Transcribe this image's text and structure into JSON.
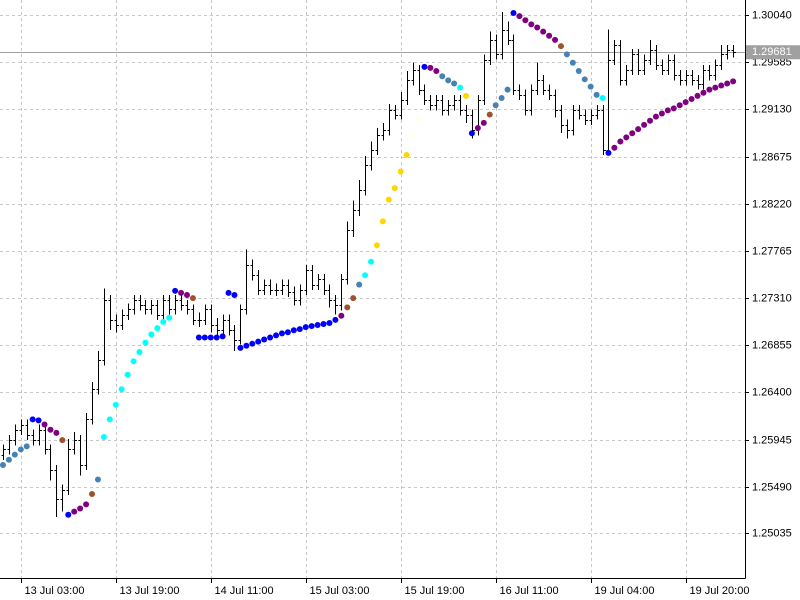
{
  "chart_data": {
    "type": "ohlc",
    "color": "#000000",
    "x": [
      0,
      1,
      2,
      3,
      4,
      5,
      6,
      7,
      8,
      9,
      10,
      11,
      12,
      13,
      14,
      15,
      16,
      17,
      18,
      19,
      20,
      21,
      22,
      23,
      24,
      25,
      26,
      27,
      28,
      29,
      30,
      31,
      32,
      33,
      34,
      35,
      36,
      37,
      38,
      39,
      40,
      41,
      42,
      43,
      44,
      45,
      46,
      47,
      48,
      49,
      50,
      51,
      52,
      53,
      54,
      55,
      56,
      57,
      58,
      59,
      60,
      61,
      62,
      63,
      64,
      65,
      66,
      67,
      68,
      69,
      70,
      71,
      72,
      73,
      74,
      75,
      76,
      77,
      78,
      79,
      80,
      81,
      82,
      83,
      84,
      85,
      86,
      87,
      88,
      89,
      90,
      91,
      92,
      93,
      94,
      95,
      96,
      97,
      98,
      99,
      100,
      101,
      102,
      103,
      104,
      105,
      106,
      107,
      108,
      109,
      110,
      111,
      112,
      113,
      114,
      115,
      116,
      117,
      118,
      119,
      120,
      121,
      122,
      123
    ],
    "open": [
      1.258,
      1.2585,
      1.2594,
      1.2604,
      1.2609,
      1.2599,
      1.2594,
      1.2604,
      1.2585,
      1.2565,
      1.2537,
      1.2546,
      1.2585,
      1.2594,
      1.257,
      1.2614,
      1.2643,
      1.2671,
      1.2729,
      1.271,
      1.2705,
      1.2715,
      1.272,
      1.2729,
      1.2724,
      1.272,
      1.2724,
      1.2715,
      1.2729,
      1.272,
      1.2729,
      1.2724,
      1.272,
      1.271,
      1.271,
      1.272,
      1.2705,
      1.27,
      1.271,
      1.27,
      1.2691,
      1.272,
      1.2763,
      1.2753,
      1.2739,
      1.2744,
      1.2739,
      1.2739,
      1.2744,
      1.2737,
      1.2729,
      1.2739,
      1.2758,
      1.2744,
      1.2749,
      1.2739,
      1.2729,
      1.2724,
      1.2749,
      1.2797,
      1.2816,
      1.2835,
      1.2859,
      1.2874,
      1.2888,
      1.2893,
      1.2912,
      1.2908,
      1.2922,
      1.2941,
      1.2951,
      1.2932,
      1.2922,
      1.2917,
      1.2922,
      1.2912,
      1.2917,
      1.2922,
      1.2912,
      1.2908,
      1.2893,
      1.2922,
      1.2961,
      1.298,
      1.2966,
      1.299,
      1.298,
      1.2932,
      1.2927,
      1.2912,
      1.2932,
      1.2941,
      1.2932,
      1.2927,
      1.2912,
      1.2898,
      1.2893,
      1.2912,
      1.2908,
      1.2903,
      1.2908,
      1.2912,
      1.2874,
      1.2961,
      1.2975,
      1.2941,
      1.2951,
      1.2966,
      1.2951,
      1.2961,
      1.297,
      1.2956,
      1.2951,
      1.2961,
      1.2946,
      1.2941,
      1.2946,
      1.2941,
      1.2937,
      1.2951,
      1.2946,
      1.2956,
      1.2966,
      1.297
    ],
    "high": [
      1.259,
      1.2599,
      1.2609,
      1.2614,
      1.2614,
      1.2604,
      1.2609,
      1.2609,
      1.259,
      1.257,
      1.2551,
      1.2595,
      1.2602,
      1.2599,
      1.262,
      1.265,
      1.268,
      1.274,
      1.2734,
      1.2715,
      1.272,
      1.2726,
      1.2734,
      1.2734,
      1.2729,
      1.2729,
      1.2729,
      1.2734,
      1.2734,
      1.2734,
      1.2734,
      1.2729,
      1.2725,
      1.2717,
      1.2725,
      1.2725,
      1.2712,
      1.2715,
      1.2715,
      1.2705,
      1.2725,
      1.2778,
      1.2768,
      1.2758,
      1.2749,
      1.2749,
      1.2745,
      1.2749,
      1.2749,
      1.2742,
      1.2744,
      1.2763,
      1.2763,
      1.2754,
      1.2754,
      1.2744,
      1.2734,
      1.2754,
      1.2805,
      1.2825,
      1.2845,
      1.2868,
      1.2882,
      1.2895,
      1.29,
      1.2918,
      1.2917,
      1.293,
      1.295,
      1.2958,
      1.2956,
      1.2937,
      1.2927,
      1.2927,
      1.2927,
      1.2922,
      1.2927,
      1.2927,
      1.2917,
      1.2913,
      1.2927,
      1.2966,
      1.2988,
      1.2985,
      1.3007,
      1.2998,
      1.2985,
      1.2937,
      1.2932,
      1.2937,
      1.2958,
      1.2946,
      1.2937,
      1.2932,
      1.2917,
      1.2903,
      1.2917,
      1.2917,
      1.2913,
      1.2913,
      1.2917,
      1.2917,
      1.299,
      1.298,
      1.298,
      1.2956,
      1.2971,
      1.2971,
      1.2966,
      1.298,
      1.2975,
      1.2961,
      1.2966,
      1.2966,
      1.2951,
      1.2951,
      1.2951,
      1.2946,
      1.2956,
      1.2956,
      1.2961,
      1.2975,
      1.2975,
      1.2975
    ],
    "low": [
      1.2575,
      1.258,
      1.2589,
      1.2599,
      1.2594,
      1.2589,
      1.2589,
      1.258,
      1.2555,
      1.252,
      1.2525,
      1.2541,
      1.258,
      1.256,
      1.2565,
      1.2609,
      1.2638,
      1.2666,
      1.27,
      1.2698,
      1.27,
      1.271,
      1.2715,
      1.2719,
      1.2715,
      1.2715,
      1.271,
      1.271,
      1.2715,
      1.2715,
      1.2719,
      1.2715,
      1.2705,
      1.2703,
      1.2705,
      1.2698,
      1.2693,
      1.2695,
      1.2695,
      1.268,
      1.2686,
      1.2715,
      1.2748,
      1.2734,
      1.2734,
      1.2734,
      1.2733,
      1.2734,
      1.2732,
      1.2724,
      1.2724,
      1.2734,
      1.2739,
      1.2739,
      1.2734,
      1.2722,
      1.2715,
      1.2719,
      1.2744,
      1.279,
      1.281,
      1.283,
      1.2854,
      1.2869,
      1.2883,
      1.2888,
      1.2903,
      1.2903,
      1.2917,
      1.2936,
      1.2927,
      1.2917,
      1.2912,
      1.2912,
      1.2907,
      1.2907,
      1.2912,
      1.2907,
      1.29,
      1.2885,
      1.2888,
      1.2917,
      1.2956,
      1.2961,
      1.2961,
      1.2975,
      1.2927,
      1.2922,
      1.2907,
      1.2907,
      1.2927,
      1.2927,
      1.2922,
      1.2905,
      1.289,
      1.2885,
      1.2888,
      1.2903,
      1.2898,
      1.2898,
      1.2903,
      1.2869,
      1.2869,
      1.2956,
      1.2936,
      1.2936,
      1.2946,
      1.2946,
      1.2946,
      1.2956,
      1.2951,
      1.2946,
      1.2946,
      1.2941,
      1.2936,
      1.2936,
      1.2936,
      1.2932,
      1.2932,
      1.2941,
      1.2941,
      1.2951,
      1.2961,
      1.2963
    ],
    "close": [
      1.2585,
      1.2594,
      1.2604,
      1.2609,
      1.2599,
      1.2594,
      1.2604,
      1.2585,
      1.2565,
      1.2537,
      1.2546,
      1.2585,
      1.2594,
      1.257,
      1.2614,
      1.2643,
      1.2671,
      1.2729,
      1.271,
      1.2705,
      1.2715,
      1.272,
      1.2729,
      1.2724,
      1.272,
      1.2724,
      1.2715,
      1.2729,
      1.272,
      1.2729,
      1.2724,
      1.272,
      1.271,
      1.271,
      1.272,
      1.2705,
      1.27,
      1.271,
      1.27,
      1.2691,
      1.272,
      1.2763,
      1.2753,
      1.2739,
      1.2744,
      1.2739,
      1.2739,
      1.2744,
      1.2737,
      1.2729,
      1.2739,
      1.2758,
      1.2744,
      1.2749,
      1.2739,
      1.2729,
      1.2724,
      1.2749,
      1.2797,
      1.2816,
      1.2835,
      1.2859,
      1.2874,
      1.2888,
      1.2893,
      1.2912,
      1.2908,
      1.2922,
      1.2941,
      1.2951,
      1.2932,
      1.2922,
      1.2917,
      1.2922,
      1.2912,
      1.2917,
      1.2922,
      1.2912,
      1.2908,
      1.2893,
      1.2922,
      1.2961,
      1.298,
      1.2966,
      1.299,
      1.298,
      1.2932,
      1.2927,
      1.2912,
      1.2932,
      1.2941,
      1.2932,
      1.2927,
      1.2912,
      1.2898,
      1.2893,
      1.2912,
      1.2908,
      1.2903,
      1.2908,
      1.2912,
      1.2874,
      1.2961,
      1.2975,
      1.2941,
      1.2951,
      1.2966,
      1.2951,
      1.2961,
      1.297,
      1.2956,
      1.2951,
      1.2961,
      1.2946,
      1.2941,
      1.2946,
      1.2941,
      1.2937,
      1.2951,
      1.2946,
      1.2956,
      1.2966,
      1.297,
      1.2968
    ],
    "indicator": {
      "type": "scatter",
      "values": [
        1.257,
        1.2575,
        1.258,
        1.2585,
        1.2588,
        1.2614,
        1.2613,
        1.2609,
        1.2604,
        1.2601,
        1.2594,
        1.2522,
        1.2525,
        1.2528,
        1.2532,
        1.2542,
        1.2556,
        1.2597,
        1.2614,
        1.2628,
        1.2643,
        1.2657,
        1.267,
        1.2679,
        1.2688,
        1.2696,
        1.2702,
        1.2708,
        1.2712,
        1.2738,
        1.2736,
        1.2734,
        1.2731,
        1.2693,
        1.2693,
        1.2693,
        1.2693,
        1.2694,
        1.2736,
        1.2734,
        1.2683,
        1.2685,
        1.2687,
        1.2689,
        1.2691,
        1.2693,
        1.2695,
        1.2697,
        1.2698,
        1.27,
        1.2701,
        1.2703,
        1.2704,
        1.2705,
        1.2706,
        1.2707,
        1.271,
        1.2714,
        1.2722,
        1.2731,
        1.2744,
        1.2753,
        1.2766,
        1.2782,
        1.2805,
        1.2826,
        1.2837,
        1.2853,
        1.2869,
        1.2888,
        1.2905,
        1.2954,
        1.2953,
        1.295,
        1.2945,
        1.2941,
        1.2938,
        1.2934,
        1.2926,
        1.289,
        1.2895,
        1.29,
        1.2908,
        1.2917,
        1.2924,
        1.2932,
        1.3006,
        1.3003,
        1.2999,
        1.2995,
        1.2992,
        1.2988,
        1.2984,
        1.298,
        1.2974,
        1.2966,
        1.2958,
        1.295,
        1.2942,
        1.2935,
        1.2927,
        1.2924,
        1.2871,
        1.2876,
        1.2882,
        1.2886,
        1.289,
        1.2894,
        1.2898,
        1.2902,
        1.2906,
        1.2909,
        1.2912,
        1.2914,
        1.2917,
        1.292,
        1.2923,
        1.2926,
        1.2929,
        1.2932,
        1.2934,
        1.2936,
        1.2938,
        1.294
      ],
      "colors": [
        "steelblue",
        "steelblue",
        "steelblue",
        "steelblue",
        "steelblue",
        "blue",
        "blue",
        "purple",
        "purple",
        "purple",
        "sienna",
        "blue",
        "purple",
        "purple",
        "purple",
        "sienna",
        "steelblue",
        "cyan",
        "cyan",
        "cyan",
        "cyan",
        "cyan",
        "cyan",
        "cyan",
        "cyan",
        "cyan",
        "cyan",
        "cyan",
        "cyan",
        "blue",
        "purple",
        "purple",
        "sienna",
        "blue",
        "blue",
        "blue",
        "blue",
        "blue",
        "blue",
        "blue",
        "blue",
        "blue",
        "blue",
        "blue",
        "blue",
        "blue",
        "blue",
        "blue",
        "blue",
        "blue",
        "blue",
        "blue",
        "blue",
        "blue",
        "blue",
        "blue",
        "blue",
        "purple",
        "sienna",
        "sienna",
        "steelblue",
        "cyan",
        "cyan",
        "gold",
        "gold",
        "gold",
        "gold",
        "gold",
        "gold",
        "ivory",
        "ivory",
        "blue",
        "purple",
        "purple",
        "steelblue",
        "steelblue",
        "steelblue",
        "cyan",
        "gold",
        "blue",
        "purple",
        "purple",
        "sienna",
        "steelblue",
        "steelblue",
        "steelblue",
        "blue",
        "purple",
        "purple",
        "purple",
        "purple",
        "purple",
        "purple",
        "purple",
        "sienna",
        "steelblue",
        "steelblue",
        "steelblue",
        "steelblue",
        "steelblue",
        "steelblue",
        "cyan",
        "blue",
        "purple",
        "purple",
        "purple",
        "purple",
        "purple",
        "purple",
        "purple",
        "purple",
        "purple",
        "purple",
        "purple",
        "purple",
        "purple",
        "purple",
        "purple",
        "purple",
        "purple",
        "purple",
        "purple",
        "purple",
        "purple",
        "purple"
      ]
    },
    "xlim": [
      -0.5,
      125
    ],
    "xticks": [
      {
        "value": 3,
        "label": "13 Jul 03:00"
      },
      {
        "value": 19,
        "label": "13 Jul 19:00"
      },
      {
        "value": 35,
        "label": "14 Jul 11:00"
      },
      {
        "value": 51,
        "label": "15 Jul 03:00"
      },
      {
        "value": 67,
        "label": "15 Jul 19:00"
      },
      {
        "value": 83,
        "label": "16 Jul 11:00"
      },
      {
        "value": 99,
        "label": "19 Jul 04:00"
      },
      {
        "value": 115,
        "label": "19 Jul 20:00"
      }
    ],
    "ylim": [
      1.2461,
      1.30185
    ],
    "yticks": [
      {
        "value": 1.2504,
        "label": "1.25035"
      },
      {
        "value": 1.2549,
        "label": "1.25490"
      },
      {
        "value": 1.25945,
        "label": "1.25945"
      },
      {
        "value": 1.264,
        "label": "1.26400"
      },
      {
        "value": 1.26855,
        "label": "1.26855"
      },
      {
        "value": 1.2731,
        "label": "1.27310"
      },
      {
        "value": 1.27765,
        "label": "1.27765"
      },
      {
        "value": 1.2822,
        "label": "1.28220"
      },
      {
        "value": 1.28675,
        "label": "1.28675"
      },
      {
        "value": 1.2913,
        "label": "1.29130"
      },
      {
        "value": 1.29585,
        "label": "1.29585"
      },
      {
        "value": 1.3004,
        "label": "1.30040"
      }
    ],
    "grid": true,
    "current_price": {
      "value": 1.29681,
      "label": "1.29681",
      "color": "#a0a0a0"
    }
  }
}
